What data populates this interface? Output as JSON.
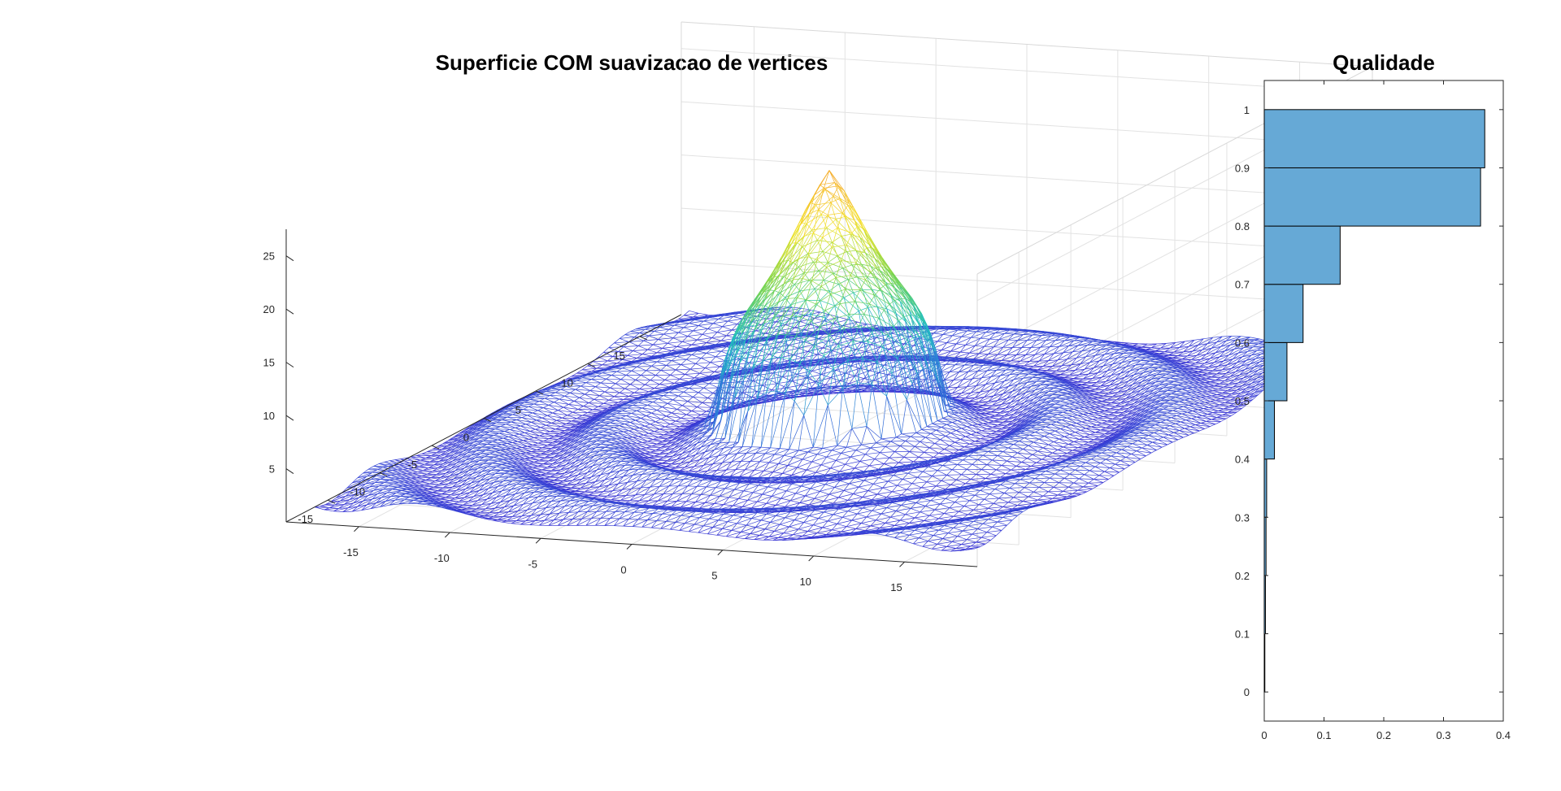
{
  "chart_data": [
    {
      "type": "surface",
      "title": "Superficie COM suavizacao de vertices",
      "xlabel": "",
      "ylabel": "",
      "zlabel": "",
      "x_ticks": [
        -15,
        -10,
        -5,
        0,
        5,
        10,
        15
      ],
      "y_ticks": [
        -15,
        -10,
        -5,
        0,
        5,
        10,
        15
      ],
      "z_ticks": [
        5,
        10,
        15,
        20,
        25
      ],
      "xlim": [
        -19,
        19
      ],
      "ylim": [
        -19,
        19
      ],
      "zlim": [
        0,
        27.5
      ],
      "grid": true,
      "colormap": [
        "#3b2bd3",
        "#2f7ad9",
        "#1ec0c0",
        "#7ad54a",
        "#f4e42a",
        "#f5a623"
      ],
      "mesh_color_base": "#4a3fd0",
      "surface_description": "ripple wavefield with central bulb reaching about z=25"
    },
    {
      "type": "bar",
      "orientation": "horizontal",
      "title": "Qualidade",
      "xlabel": "",
      "ylabel": "",
      "categories": [
        0.05,
        0.15,
        0.25,
        0.35,
        0.45,
        0.55,
        0.65,
        0.75,
        0.85,
        0.95
      ],
      "values": [
        0.001,
        0.002,
        0.003,
        0.004,
        0.017,
        0.038,
        0.065,
        0.127,
        0.362,
        0.369
      ],
      "y_ticks": [
        0,
        0.1,
        0.2,
        0.3,
        0.4,
        0.5,
        0.6,
        0.7,
        0.8,
        0.9,
        1
      ],
      "x_ticks": [
        0,
        0.1,
        0.2,
        0.3,
        0.4
      ],
      "xlim": [
        0,
        0.4
      ],
      "ylim": [
        -0.05,
        1.05
      ],
      "bar_color": "#66a9d6",
      "grid": false
    }
  ]
}
